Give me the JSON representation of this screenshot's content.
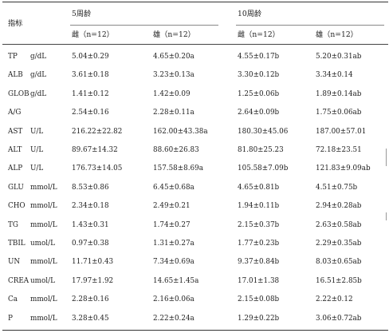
{
  "header": {
    "indicator_label": "指标",
    "groups": [
      "5周龄",
      "10周龄"
    ],
    "subcolumns": [
      "雌（n=12）",
      "雄（n=12）",
      "雌（n=12）",
      "雄（n=12）"
    ]
  },
  "rows": [
    {
      "name": "TP",
      "unit": "g/dL",
      "values": [
        "5.04±0.29",
        "4.65±0.20a",
        "4.55±0.17b",
        "5.20±0.31ab"
      ]
    },
    {
      "name": "ALB",
      "unit": "g/dL",
      "values": [
        "3.61±0.18",
        "3.23±0.13a",
        "3.30±0.12b",
        "3.34±0.14"
      ]
    },
    {
      "name": "GLOB",
      "unit": "g/dL",
      "values": [
        "1.41±0.12",
        "1.42±0.09",
        "1.25±0.06b",
        "1.89±0.14ab"
      ]
    },
    {
      "name": "A/G",
      "unit": "",
      "values": [
        "2.54±0.16",
        "2.28±0.11a",
        "2.64±0.09b",
        "1.75±0.06ab"
      ]
    },
    {
      "name": "AST",
      "unit": "U/L",
      "values": [
        "216.22±22.82",
        "162.00±43.38a",
        "180.30±45.06",
        "187.00±57.01"
      ]
    },
    {
      "name": "ALT",
      "unit": "U/L",
      "values": [
        "89.67±14.32",
        "88.60±26.83",
        "81.80±25.23",
        "72.18±23.51"
      ]
    },
    {
      "name": "ALP",
      "unit": "U/L",
      "values": [
        "176.73±14.05",
        "157.58±8.69a",
        "105.58±7.09b",
        "121.83±9.09ab"
      ]
    },
    {
      "name": "GLU",
      "unit": "mmol/L",
      "values": [
        "8.53±0.86",
        "6.45±0.68a",
        "4.65±0.81b",
        "4.51±0.75b"
      ]
    },
    {
      "name": "CHO",
      "unit": "mmol/L",
      "values": [
        "2.34±0.18",
        "2.49±0.21",
        "1.94±0.11b",
        "2.94±0.28ab"
      ]
    },
    {
      "name": "TG",
      "unit": "mmol/L",
      "values": [
        "1.43±0.31",
        "1.74±0.27",
        "2.15±0.37b",
        "2.63±0.58ab"
      ]
    },
    {
      "name": "TBIL",
      "unit": "umol/L",
      "values": [
        "0.97±0.38",
        "1.31±0.27a",
        "1.77±0.23b",
        "2.29±0.35ab"
      ]
    },
    {
      "name": "UN",
      "unit": "mmol/L",
      "values": [
        "11.71±0.43",
        "7.34±0.69a",
        "9.37±0.84b",
        "8.03±0.65ab"
      ]
    },
    {
      "name": "CREA",
      "unit": "umol/L",
      "values": [
        "17.97±1.92",
        "14.65±1.45a",
        "17.01±1.38",
        "16.51±2.85b"
      ]
    },
    {
      "name": "Ca",
      "unit": "mmol/L",
      "values": [
        "2.28±0.16",
        "2.16±0.06a",
        "2.15±0.08b",
        "2.22±0.12"
      ]
    },
    {
      "name": "P",
      "unit": "mmol/L",
      "values": [
        "3.28±0.45",
        "2.22±0.24a",
        "1.29±0.22b",
        "3.06±0.72ab"
      ]
    }
  ]
}
